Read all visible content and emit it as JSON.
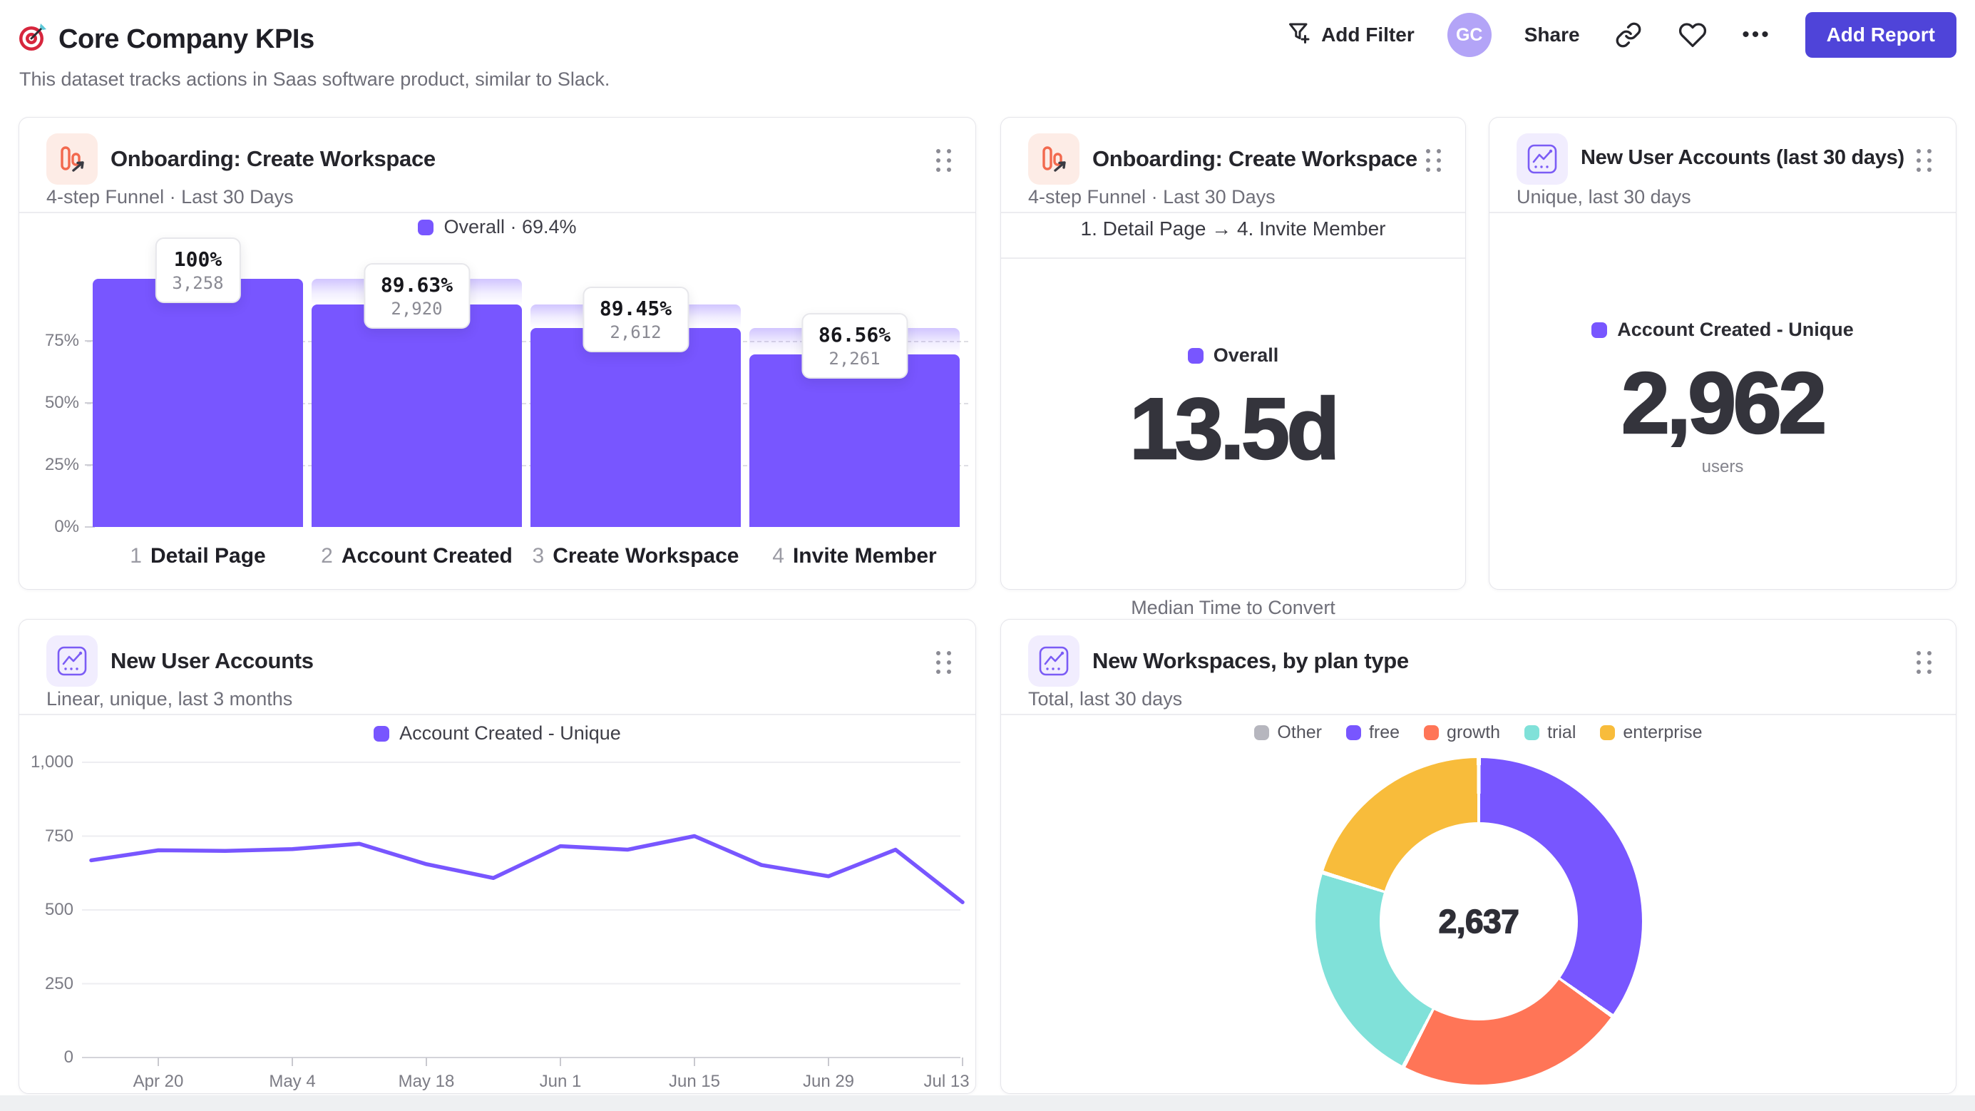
{
  "header": {
    "title": "Core Company KPIs",
    "subtitle": "This dataset tracks actions in Saas software product, similar to Slack.",
    "add_filter_label": "Add Filter",
    "avatar_initials": "GC",
    "share_label": "Share",
    "more_label": "•••",
    "add_report_label": "Add Report"
  },
  "colors": {
    "accent_purple": "#7856ff",
    "coral": "#ff7557",
    "teal": "#80e1d9",
    "yellow": "#f8bc3b",
    "gray_series": "#b6b6be",
    "add_report_bg": "#4f44d9",
    "avatar_bg": "#b3a4f7"
  },
  "cards": {
    "funnel": {
      "title": "Onboarding: Create Workspace",
      "subtitle": "4-step Funnel · Last 30 Days",
      "legend": "Overall · 69.4%"
    },
    "funnel_summary": {
      "title": "Onboarding: Create Workspace",
      "subtitle": "4-step Funnel · Last 30 Days",
      "range": "1. Detail Page → 4. Invite Member",
      "legend": "Overall",
      "value": "13.5d",
      "caption": "Median Time to Convert"
    },
    "new_users_total": {
      "title": "New User Accounts (last 30 days)",
      "subtitle": "Unique, last 30 days",
      "legend": "Account Created - Unique",
      "value": "2,962",
      "caption": "users"
    },
    "new_users_trend": {
      "title": "New User Accounts",
      "subtitle": "Linear, unique, last 3 months",
      "legend": "Account Created - Unique"
    },
    "workspaces": {
      "title": "New Workspaces, by plan type",
      "subtitle": "Total, last 30 days",
      "center_value": "2,637"
    }
  },
  "chart_data": [
    {
      "id": "onboarding_funnel",
      "type": "bar",
      "title": "Onboarding: Create Workspace",
      "overall_conversion_pct": 69.4,
      "bar_color": "#7856ff",
      "y_ticks": [
        {
          "pct": 75,
          "label": "75%"
        },
        {
          "pct": 50,
          "label": "50%"
        },
        {
          "pct": 25,
          "label": "25%"
        },
        {
          "pct": 0,
          "label": "0%"
        }
      ],
      "steps": [
        {
          "index": "1",
          "label": "Detail Page",
          "count": 3258,
          "count_label": "3,258",
          "step_conversion": "100%"
        },
        {
          "index": "2",
          "label": "Account Created",
          "count": 2920,
          "count_label": "2,920",
          "step_conversion": "89.63%"
        },
        {
          "index": "3",
          "label": "Create Workspace",
          "count": 2612,
          "count_label": "2,612",
          "step_conversion": "89.45%"
        },
        {
          "index": "4",
          "label": "Invite Member",
          "count": 2261,
          "count_label": "2,261",
          "step_conversion": "86.56%"
        }
      ]
    },
    {
      "id": "new_user_accounts_weekly",
      "type": "line",
      "series_name": "Account Created - Unique",
      "line_color": "#7856ff",
      "ylim": [
        0,
        1000
      ],
      "y_ticks": [
        {
          "v": 1000,
          "label": "1,000"
        },
        {
          "v": 750,
          "label": "750"
        },
        {
          "v": 500,
          "label": "500"
        },
        {
          "v": 250,
          "label": "250"
        },
        {
          "v": 0,
          "label": "0"
        }
      ],
      "values": [
        668,
        702,
        700,
        706,
        724,
        655,
        608,
        716,
        704,
        750,
        652,
        614,
        704,
        526
      ],
      "x_tick_labels": [
        "Apr 20",
        "May 4",
        "May 18",
        "Jun 1",
        "Jun 15",
        "Jun 29",
        "Jul 13"
      ],
      "x_tick_indices": [
        1,
        3,
        5,
        7,
        9,
        11,
        13
      ]
    },
    {
      "id": "new_workspaces_by_plan",
      "type": "pie",
      "total": 2637,
      "center_label": "2,637",
      "slices": [
        {
          "label": "Other",
          "value": 0,
          "pct": 0.0,
          "color": "#b6b6be"
        },
        {
          "label": "free",
          "value": 918,
          "pct": 34.8,
          "color": "#7856ff"
        },
        {
          "label": "growth",
          "value": 601,
          "pct": 22.8,
          "color": "#ff7557"
        },
        {
          "label": "trial",
          "value": 586,
          "pct": 22.2,
          "color": "#80e1d9"
        },
        {
          "label": "enterprise",
          "value": 532,
          "pct": 20.2,
          "color": "#f8bc3b"
        }
      ]
    }
  ]
}
